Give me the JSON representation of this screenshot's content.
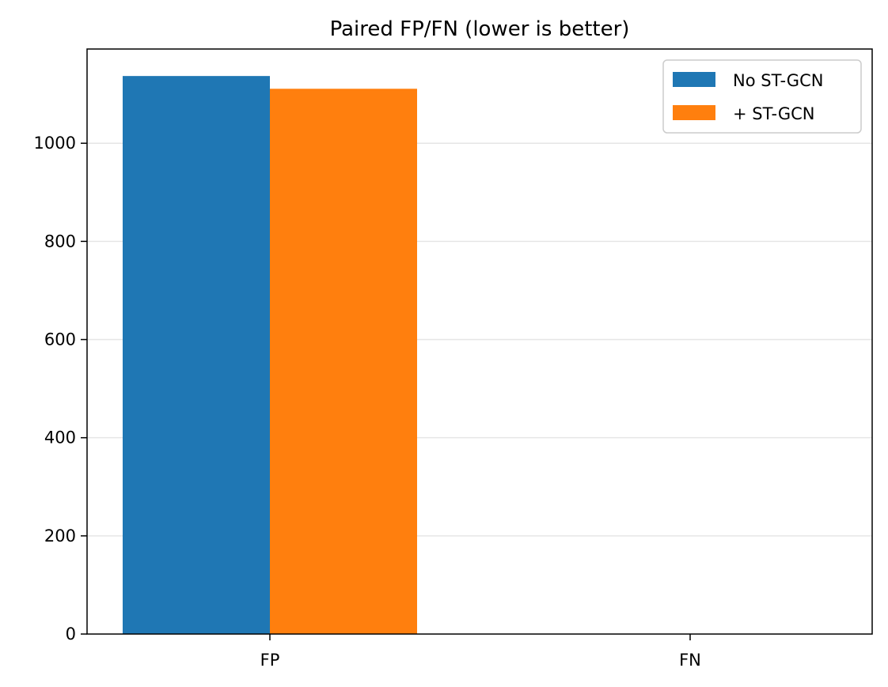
{
  "chart_data": {
    "type": "bar",
    "title": "Paired FP/FN (lower is better)",
    "xlabel": "",
    "ylabel": "",
    "categories": [
      "FP",
      "FN"
    ],
    "series": [
      {
        "name": "No ST-GCN",
        "values": [
          1137,
          0
        ]
      },
      {
        "name": "+ ST-GCN",
        "values": [
          1111,
          0
        ]
      }
    ],
    "ylim": [
      0,
      1192
    ],
    "yticks": [
      0,
      200,
      400,
      600,
      800,
      1000
    ],
    "grid": "y",
    "legend": "top-right",
    "colors": [
      "#1f77b4",
      "#ff7f0e"
    ]
  }
}
